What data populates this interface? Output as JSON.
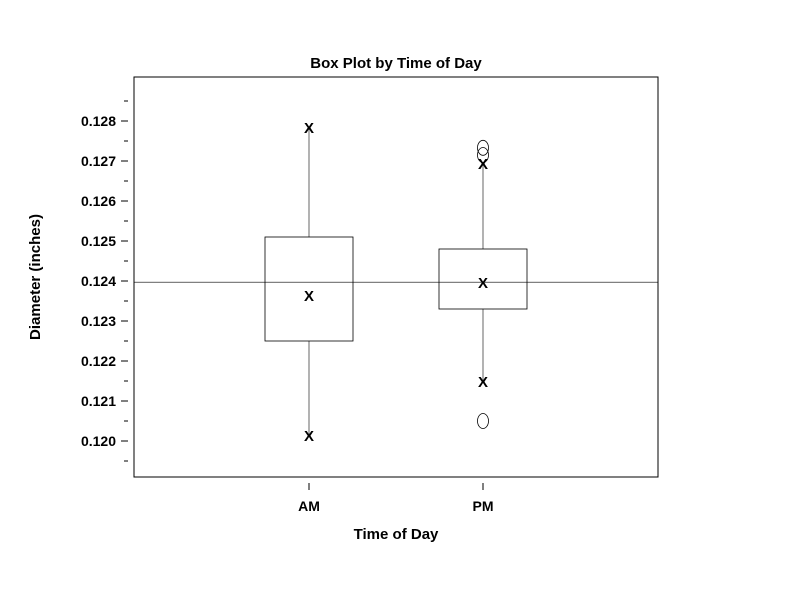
{
  "chart_data": {
    "type": "box",
    "title": "Box Plot by Time of Day",
    "xlabel": "Time of Day",
    "ylabel": "Diameter (inches)",
    "ylim": [
      0.1191,
      0.1291
    ],
    "y_ticks": [
      "0.120",
      "0.121",
      "0.122",
      "0.123",
      "0.124",
      "0.125",
      "0.126",
      "0.127",
      "0.128"
    ],
    "y_tick_values": [
      0.12,
      0.121,
      0.122,
      0.123,
      0.124,
      0.125,
      0.126,
      0.127,
      0.128
    ],
    "y_minor_ticks": [
      0.1195,
      0.1205,
      0.1215,
      0.1225,
      0.1235,
      0.1245,
      0.1255,
      0.1265,
      0.1275,
      0.1285
    ],
    "reference_line": 0.12397,
    "marker_symbol": "X",
    "categories": [
      "AM",
      "PM"
    ],
    "boxes": [
      {
        "category": "AM",
        "min": 0.12015,
        "q1": 0.1225,
        "median": 0.12365,
        "q3": 0.1251,
        "max": 0.12785,
        "outliers": []
      },
      {
        "category": "PM",
        "min": 0.1215,
        "q1": 0.1233,
        "median": 0.12397,
        "q3": 0.1248,
        "max": 0.12695,
        "outliers": [
          0.12733,
          0.12715,
          0.1205
        ]
      }
    ]
  }
}
